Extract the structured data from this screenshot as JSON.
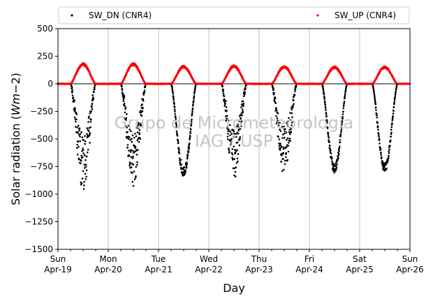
{
  "chart_data": {
    "type": "scatter",
    "xlabel": "Day",
    "ylabel": "Solar radiation ($Wm{-2}$)",
    "ylabel_parts": {
      "main": "Solar radiation (",
      "unit_W": "W",
      "unit_m": "m",
      "unit_exp": "−2",
      "close": ")"
    },
    "ylim": [
      -1500,
      500
    ],
    "yticks": [
      500,
      250,
      0,
      -250,
      -500,
      -750,
      -1000,
      -1250,
      -1500
    ],
    "ytick_labels": [
      "500",
      "250",
      "0",
      "−250",
      "−500",
      "−750",
      "−1000",
      "−1250",
      "−1500"
    ],
    "xlim": [
      "2020-04-19",
      "2020-04-26"
    ],
    "xticks": [
      {
        "day": "Sun",
        "date": "Apr-19"
      },
      {
        "day": "Mon",
        "date": "Apr-20"
      },
      {
        "day": "Tue",
        "date": "Apr-21"
      },
      {
        "day": "Wed",
        "date": "Apr-22"
      },
      {
        "day": "Thu",
        "date": "Apr-23"
      },
      {
        "day": "Fri",
        "date": "Apr-24"
      },
      {
        "day": "Sat",
        "date": "Apr-25"
      },
      {
        "day": "Sun",
        "date": "Apr-26"
      }
    ],
    "grid_vertical": true,
    "legend_position": "top, outside plot",
    "watermark": [
      "Grupo de Micrometeorologia",
      "IAG / USP"
    ],
    "series": [
      {
        "name": "SW_DN (CNR4)",
        "color": "#000000",
        "daily_peaks": [
          {
            "date": "2020-04-19",
            "min": -970,
            "noisy": true
          },
          {
            "date": "2020-04-20",
            "min": -940,
            "noisy": true
          },
          {
            "date": "2020-04-21",
            "min": -840,
            "noisy": false
          },
          {
            "date": "2020-04-22",
            "min": -880,
            "noisy": true
          },
          {
            "date": "2020-04-23",
            "min": -850,
            "noisy": true
          },
          {
            "date": "2020-04-24",
            "min": -810,
            "noisy": false
          },
          {
            "date": "2020-04-25",
            "min": -800,
            "noisy": false
          }
        ]
      },
      {
        "name": "SW_UP (CNR4)",
        "color": "#ff0000",
        "daily_peaks": [
          {
            "date": "2020-04-19",
            "max": 185
          },
          {
            "date": "2020-04-20",
            "max": 185
          },
          {
            "date": "2020-04-21",
            "max": 160
          },
          {
            "date": "2020-04-22",
            "max": 165
          },
          {
            "date": "2020-04-23",
            "max": 160
          },
          {
            "date": "2020-04-24",
            "max": 155
          },
          {
            "date": "2020-04-25",
            "max": 155
          }
        ]
      }
    ]
  }
}
